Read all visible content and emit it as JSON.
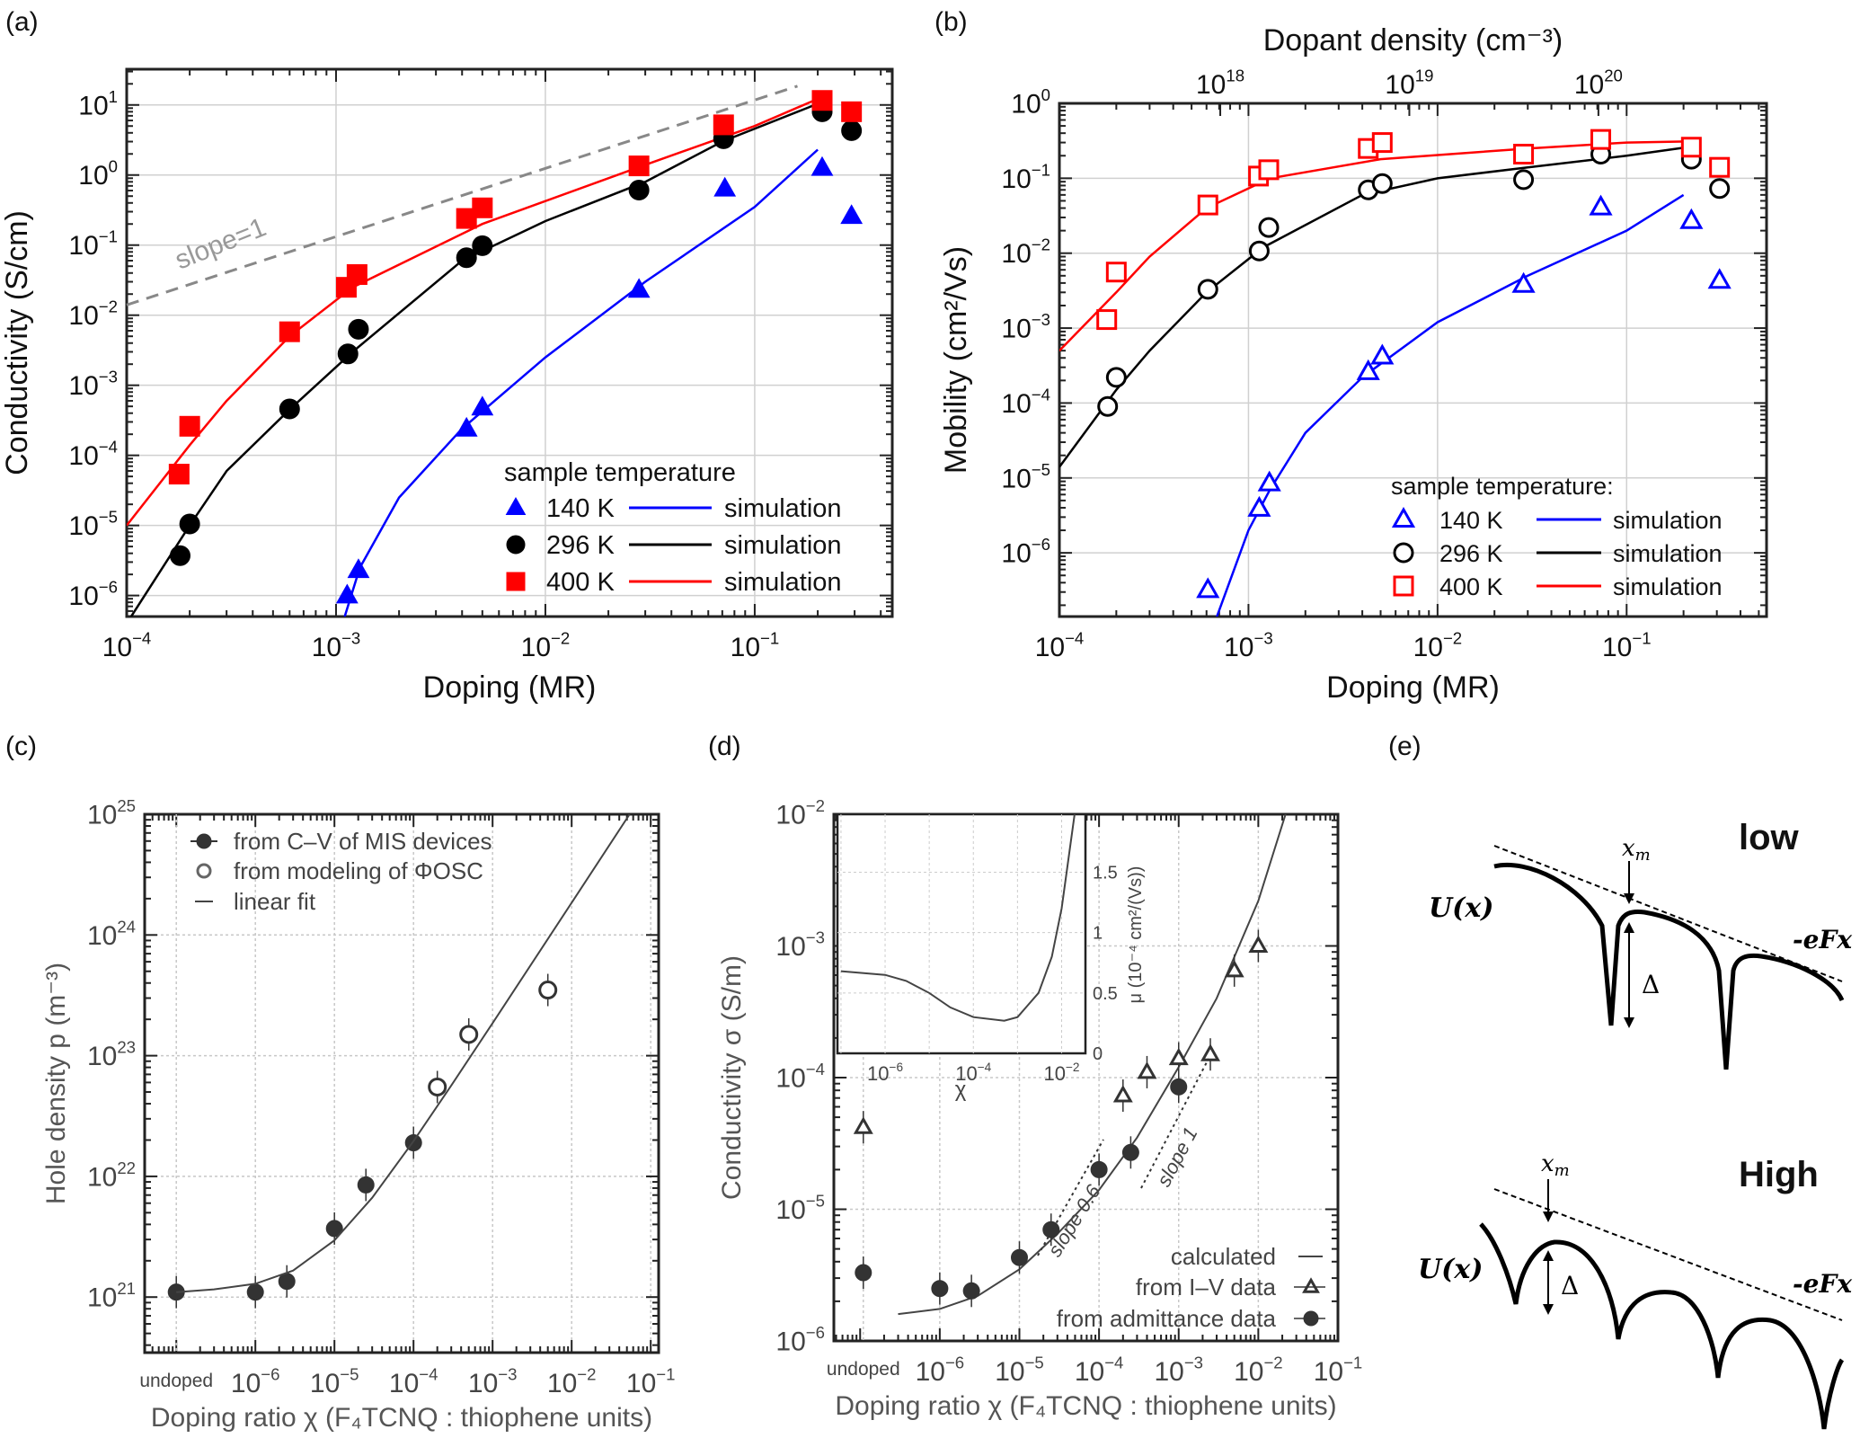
{
  "panel_labels": {
    "a": "(a)",
    "b": "(b)",
    "c": "(c)",
    "d": "(d)",
    "e": "(e)"
  },
  "colors": {
    "t140": "#0000ff",
    "t296": "#000000",
    "t400": "#ff0000",
    "slope_line": "#888888",
    "bw": "#333333"
  },
  "chart_data": [
    {
      "id": "a",
      "type": "scatter",
      "xlabel": "Doping (MR)",
      "ylabel": "Conductivity (S/cm)",
      "xscale": "log",
      "yscale": "log",
      "grid": true,
      "xlim": [
        0.0001,
        0.45
      ],
      "ylim": [
        5e-07,
        32
      ],
      "x_ticks": [
        -4,
        -3,
        -2,
        -1
      ],
      "y_ticks": [
        -6,
        -5,
        -4,
        -3,
        -2,
        -1,
        0,
        1
      ],
      "legend": {
        "title": "sample temperature",
        "placement": "bottom-right",
        "line_label": "simulation"
      },
      "annotation": {
        "text": "slope=1",
        "line": [
          [
            0.0001,
            0.014
          ],
          [
            0.16,
            18.6
          ]
        ]
      },
      "series": [
        {
          "name": "140 K",
          "color_key": "t140",
          "marker": "triangle-filled",
          "x": [
            0.00113,
            0.00128,
            0.0042,
            0.005,
            0.028,
            0.072,
            0.21,
            0.29
          ],
          "y": [
            1e-06,
            2.3e-06,
            0.00024,
            0.00048,
            0.023,
            0.64,
            1.26,
            0.26
          ],
          "simulation": [
            [
              0.0011,
              5e-07
            ],
            [
              0.0013,
              2.5e-06
            ],
            [
              0.002,
              2.5e-05
            ],
            [
              0.004,
              0.00024
            ],
            [
              0.01,
              0.0025
            ],
            [
              0.03,
              0.03
            ],
            [
              0.1,
              0.35
            ],
            [
              0.2,
              2.3
            ]
          ]
        },
        {
          "name": "296 K",
          "color_key": "t296",
          "marker": "circle-filled",
          "x": [
            0.00018,
            0.0002,
            0.0006,
            0.00114,
            0.00128,
            0.0042,
            0.005,
            0.028,
            0.071,
            0.21,
            0.29
          ],
          "y": [
            3.7e-06,
            1.05e-05,
            0.00046,
            0.0028,
            0.0063,
            0.066,
            0.098,
            0.61,
            3.3,
            8,
            4.3
          ],
          "simulation": [
            [
              0.000105,
              5e-07
            ],
            [
              0.0002,
              1e-05
            ],
            [
              0.0003,
              6e-05
            ],
            [
              0.0006,
              0.00045
            ],
            [
              0.0012,
              0.003
            ],
            [
              0.004,
              0.06
            ],
            [
              0.01,
              0.22
            ],
            [
              0.03,
              0.8
            ],
            [
              0.07,
              3
            ],
            [
              0.21,
              11
            ]
          ]
        },
        {
          "name": "400 K",
          "color_key": "t400",
          "marker": "square-filled",
          "x": [
            0.000178,
            0.0002,
            0.0006,
            0.00112,
            0.00126,
            0.0042,
            0.005,
            0.028,
            0.071,
            0.21,
            0.29
          ],
          "y": [
            5.4e-05,
            0.00026,
            0.0058,
            0.025,
            0.038,
            0.24,
            0.34,
            1.35,
            5.2,
            11.6,
            8
          ],
          "simulation": [
            [
              0.0001,
              1e-05
            ],
            [
              0.0002,
              0.00014
            ],
            [
              0.0003,
              0.0006
            ],
            [
              0.0006,
              0.005
            ],
            [
              0.0012,
              0.025
            ],
            [
              0.005,
              0.2
            ],
            [
              0.03,
              1.4
            ],
            [
              0.1,
              5
            ],
            [
              0.21,
              13
            ]
          ]
        }
      ]
    },
    {
      "id": "b",
      "type": "scatter",
      "xlabel": "Doping (MR)",
      "ylabel": "Mobility (cm²/Vs)",
      "top_xlabel": "Dopant density (cm⁻³)",
      "top_x_ticks": [
        18,
        19,
        20
      ],
      "top_axis_factor": 1.41e+21,
      "xscale": "log",
      "yscale": "log",
      "grid": true,
      "xlim": [
        0.0001,
        0.55
      ],
      "ylim": [
        1.4e-07,
        1
      ],
      "x_ticks": [
        -4,
        -3,
        -2,
        -1
      ],
      "y_ticks": [
        -6,
        -5,
        -4,
        -3,
        -2,
        -1,
        0
      ],
      "legend": {
        "title": "sample temperature:",
        "placement": "bottom-right",
        "line_label": "simulation"
      },
      "series": [
        {
          "name": "140 K",
          "color_key": "t140",
          "marker": "triangle-open",
          "x": [
            0.00061,
            0.00114,
            0.00129,
            0.0043,
            0.0051,
            0.0285,
            0.073,
            0.22,
            0.31
          ],
          "y": [
            3.2e-07,
            3.9e-06,
            8.5e-06,
            0.00026,
            0.00042,
            0.0038,
            0.041,
            0.027,
            0.0043
          ],
          "simulation": [
            [
              0.00068,
              1.4e-07
            ],
            [
              0.001,
              2e-06
            ],
            [
              0.0013,
              7e-06
            ],
            [
              0.002,
              4e-05
            ],
            [
              0.004,
              0.00022
            ],
            [
              0.01,
              0.0012
            ],
            [
              0.03,
              0.005
            ],
            [
              0.1,
              0.02
            ],
            [
              0.2,
              0.06
            ]
          ]
        },
        {
          "name": "296 K",
          "color_key": "t296",
          "marker": "circle-open",
          "x": [
            0.00018,
            0.0002,
            0.00061,
            0.00114,
            0.00128,
            0.0043,
            0.0051,
            0.0285,
            0.073,
            0.22,
            0.31
          ],
          "y": [
            9e-05,
            0.00022,
            0.0033,
            0.0107,
            0.022,
            0.07,
            0.085,
            0.096,
            0.21,
            0.18,
            0.073
          ],
          "simulation": [
            [
              0.0001,
              1.4e-05
            ],
            [
              0.0002,
              0.00015
            ],
            [
              0.0003,
              0.0005
            ],
            [
              0.0006,
              0.003
            ],
            [
              0.0012,
              0.012
            ],
            [
              0.004,
              0.06
            ],
            [
              0.01,
              0.1
            ],
            [
              0.03,
              0.14
            ],
            [
              0.1,
              0.2
            ],
            [
              0.21,
              0.26
            ]
          ]
        },
        {
          "name": "400 K",
          "color_key": "t400",
          "marker": "square-open",
          "x": [
            0.000178,
            0.0002,
            0.00061,
            0.00113,
            0.00128,
            0.0043,
            0.0051,
            0.0285,
            0.073,
            0.22,
            0.31
          ],
          "y": [
            0.0013,
            0.0056,
            0.044,
            0.107,
            0.13,
            0.25,
            0.3,
            0.21,
            0.33,
            0.26,
            0.14
          ],
          "simulation": [
            [
              0.0001,
              0.0005
            ],
            [
              0.0002,
              0.003
            ],
            [
              0.0003,
              0.009
            ],
            [
              0.0006,
              0.04
            ],
            [
              0.0013,
              0.1
            ],
            [
              0.005,
              0.18
            ],
            [
              0.03,
              0.25
            ],
            [
              0.1,
              0.3
            ],
            [
              0.21,
              0.31
            ]
          ]
        }
      ]
    },
    {
      "id": "c",
      "type": "scatter",
      "xlabel": "Doping ratio χ (F₄TCNQ : thiophene units)",
      "ylabel": "Hole density p (m⁻³)",
      "xscale": "log",
      "yscale": "log",
      "grid": true,
      "x_ticks": [
        -6,
        -5,
        -4,
        -3,
        -2,
        -1
      ],
      "y_ticks": [
        21,
        22,
        23,
        24,
        25
      ],
      "undoped_label": "undoped",
      "legend": {
        "placement": "top-left",
        "entries": [
          "from C–V of MIS devices",
          "from modeling of ΦOSC",
          "linear fit"
        ]
      },
      "series": [
        {
          "name": "from C–V of MIS devices",
          "marker": "circle-filled",
          "x": [
            "undoped",
            1e-06,
            2.5e-06,
            1e-05,
            2.5e-05,
            0.0001
          ],
          "y": [
            1.1e+21,
            1.1e+21,
            1.35e+21,
            3.7e+21,
            8.5e+21,
            1.9e+22
          ]
        },
        {
          "name": "from modeling of ΦOSC",
          "marker": "circle-open",
          "x": [
            0.0002,
            0.0005,
            0.005
          ],
          "y": [
            5.5e+22,
            1.5e+23,
            3.5e+23
          ]
        },
        {
          "name": "linear fit",
          "marker": "line",
          "points": [
            [
              1e-07,
              1.1e+21
            ],
            [
              3e-07,
              1.16e+21
            ],
            [
              1e-06,
              1.29e+21
            ],
            [
              3e-06,
              1.66e+21
            ],
            [
              1e-05,
              2.95e+21
            ],
            [
              3e-05,
              6.65e+21
            ],
            [
              0.0001,
              1.96e+22
            ],
            [
              0.0003,
              5.66e+22
            ],
            [
              0.001,
              1.86e+23
            ],
            [
              0.01,
              1.85e+24
            ],
            [
              0.054,
              1e+25
            ]
          ]
        }
      ]
    },
    {
      "id": "d",
      "type": "scatter",
      "xlabel": "Doping ratio χ (F₄TCNQ : thiophene units)",
      "ylabel": "Conductivity σ (S/m)",
      "xscale": "log",
      "yscale": "log",
      "grid": true,
      "x_ticks": [
        -6,
        -5,
        -4,
        -3,
        -2,
        -1
      ],
      "y_ticks": [
        -6,
        -5,
        -4,
        -3,
        -2
      ],
      "undoped_label": "undoped",
      "legend": {
        "placement": "bottom-right",
        "entries": [
          "calculated",
          "from I–V data",
          "from admittance data"
        ]
      },
      "annotations": [
        {
          "text": "slope 0.6"
        },
        {
          "text": "slope 1"
        }
      ],
      "series": [
        {
          "name": "calculated",
          "marker": "line",
          "points": [
            [
              3e-07,
              1.6e-06
            ],
            [
              1e-06,
              1.75e-06
            ],
            [
              3e-06,
              2.2e-06
            ],
            [
              1e-05,
              3.5e-06
            ],
            [
              3e-05,
              6.5e-06
            ],
            [
              0.0001,
              1.4e-05
            ],
            [
              0.0003,
              3.5e-05
            ],
            [
              0.001,
              0.00012
            ],
            [
              0.003,
              0.0004
            ],
            [
              0.01,
              0.0022
            ],
            [
              0.022,
              0.01
            ]
          ]
        },
        {
          "name": "from I–V data",
          "marker": "triangle-open",
          "x": [
            "undoped",
            0.0002,
            0.0004,
            0.001,
            0.0025,
            0.005,
            0.01
          ],
          "y": [
            4.2e-05,
            7.3e-05,
            0.00011,
            0.00014,
            0.00015,
            0.00065,
            0.001
          ]
        },
        {
          "name": "from admittance data",
          "marker": "circle-filled",
          "x": [
            "undoped",
            1e-06,
            2.5e-06,
            1e-05,
            2.5e-05,
            0.0001,
            0.00025,
            0.001
          ],
          "y": [
            3.3e-06,
            2.5e-06,
            2.4e-06,
            4.3e-06,
            7e-06,
            2e-05,
            2.7e-05,
            8.5e-05
          ]
        }
      ],
      "inset": {
        "type": "line",
        "xlabel": "χ",
        "ylabel": "μ (10⁻⁴ cm²/(Vs))",
        "xscale": "log",
        "x_ticks": [
          -6,
          -4,
          -2
        ],
        "y_ticks": [
          "0",
          "0.5",
          "1",
          "1.5"
        ],
        "points": [
          [
            1e-07,
            0.68
          ],
          [
            1e-06,
            0.65
          ],
          [
            3e-06,
            0.6
          ],
          [
            1e-05,
            0.5
          ],
          [
            3e-05,
            0.38
          ],
          [
            0.0001,
            0.3
          ],
          [
            0.0005,
            0.27
          ],
          [
            0.001,
            0.3
          ],
          [
            0.003,
            0.5
          ],
          [
            0.006,
            0.8
          ],
          [
            0.01,
            1.2
          ],
          [
            0.02,
            2.0
          ]
        ]
      }
    }
  ],
  "diagram_e": {
    "low": {
      "title": "low",
      "ylabel": "U(x)",
      "field_label": "-eFx",
      "xm_label": "x",
      "xm_sub": "m",
      "delta": "Δ"
    },
    "high": {
      "title": "High",
      "ylabel": "U(x)",
      "field_label": "-eFx",
      "xm_label": "x",
      "xm_sub": "m",
      "delta": "Δ"
    }
  }
}
